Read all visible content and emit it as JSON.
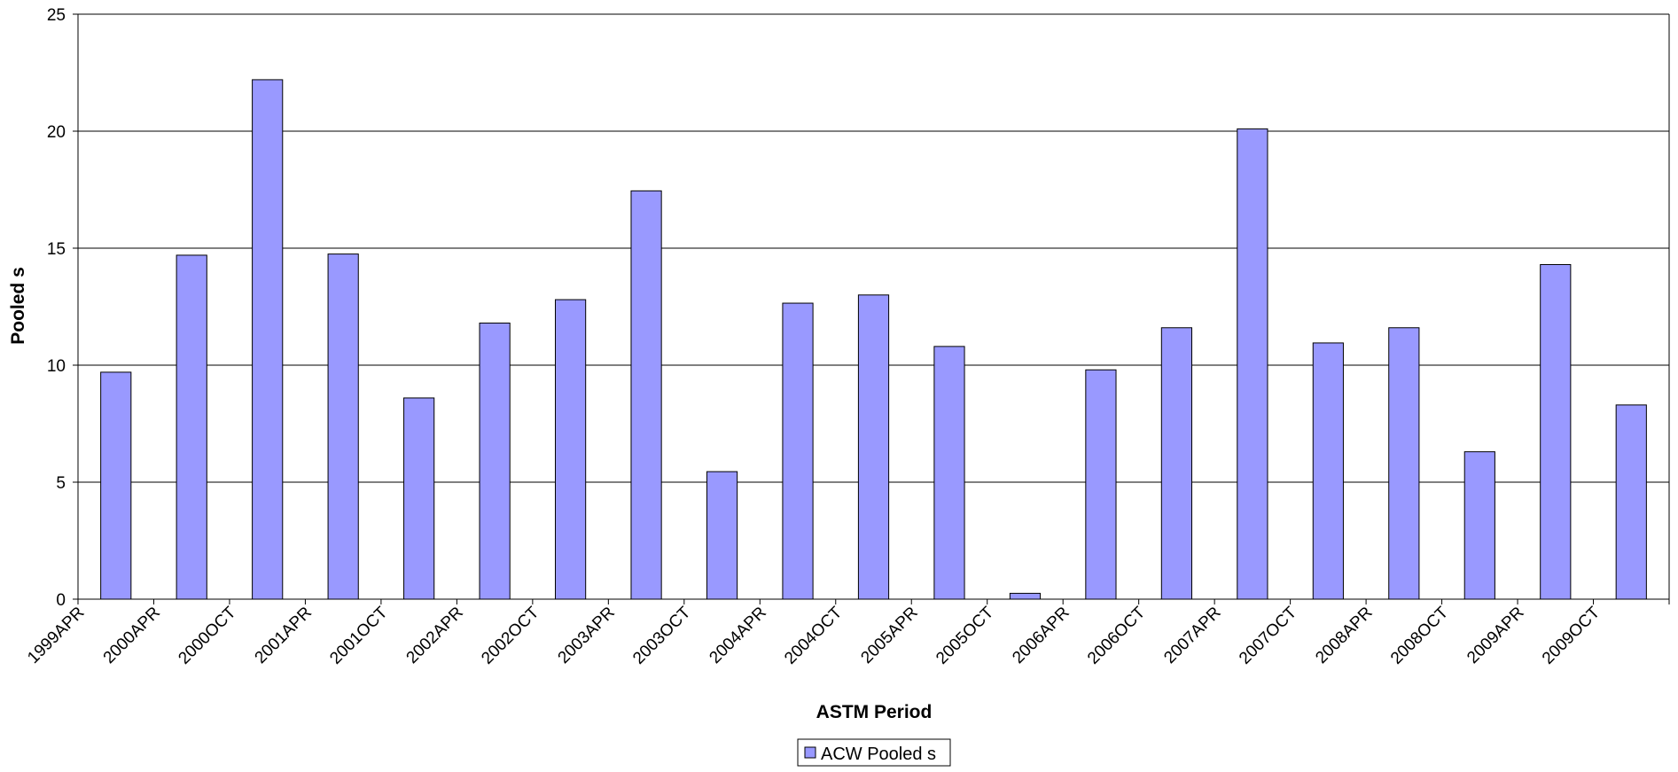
{
  "chart_data": {
    "type": "bar",
    "title": "",
    "xlabel": "ASTM Period",
    "ylabel": "Pooled s",
    "ylim": [
      0,
      25
    ],
    "yticks": [
      0,
      5,
      10,
      15,
      20,
      25
    ],
    "grid": true,
    "legend_position": "bottom",
    "categories": [
      "1999APR",
      "2000APR",
      "2000OCT",
      "2001APR",
      "2001OCT",
      "2002APR",
      "2002OCT",
      "2003APR",
      "2003OCT",
      "2004APR",
      "2004OCT",
      "2005APR",
      "2005OCT",
      "2006APR",
      "2006OCT",
      "2007APR",
      "2007OCT",
      "2008APR",
      "2008OCT",
      "2009APR",
      "2009OCT"
    ],
    "series": [
      {
        "name": "ACW Pooled s",
        "color": "#9999ff",
        "values": [
          9.7,
          14.7,
          22.2,
          14.75,
          8.6,
          11.8,
          12.8,
          17.45,
          5.45,
          12.65,
          13.0,
          10.8,
          0.25,
          9.8,
          11.6,
          20.1,
          10.95,
          11.6,
          6.3,
          14.3,
          8.3
        ]
      }
    ]
  }
}
